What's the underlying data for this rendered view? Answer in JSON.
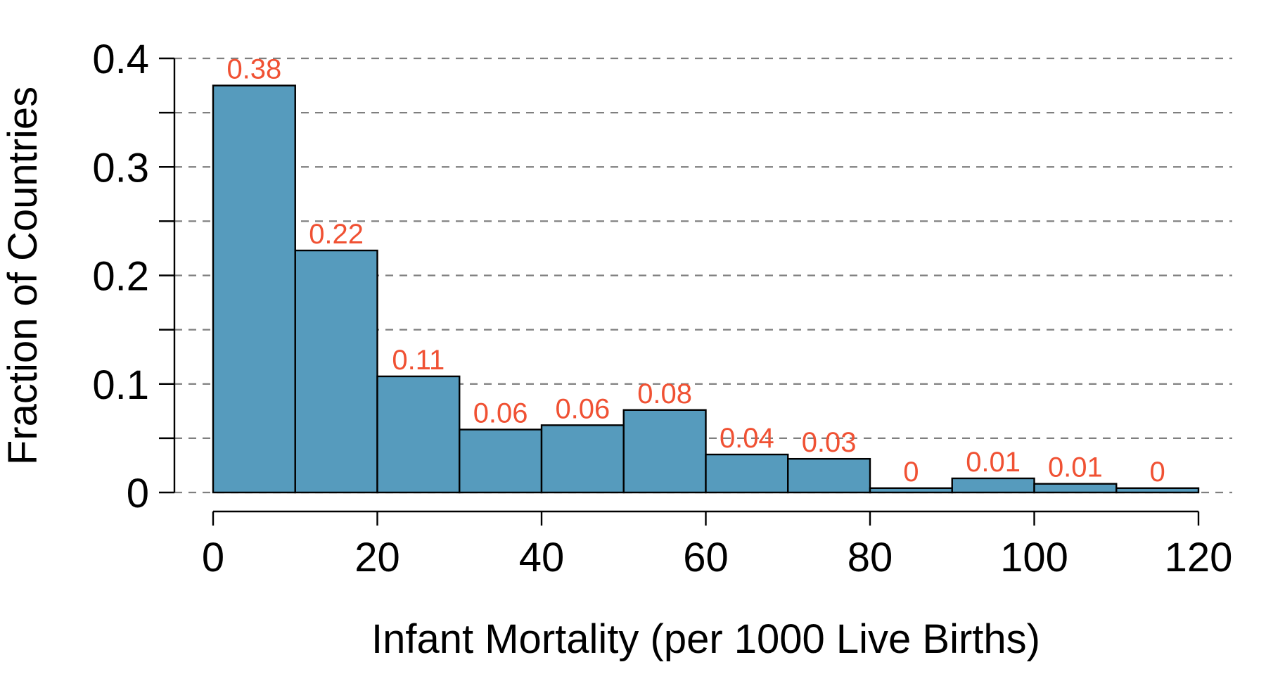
{
  "chart_data": {
    "type": "bar",
    "subtype": "histogram",
    "title": "",
    "xlabel": "Infant Mortality (per 1000 Live Births)",
    "ylabel": "Fraction of Countries",
    "xlim": [
      0,
      120
    ],
    "ylim": [
      0,
      0.4
    ],
    "x_ticks": [
      0,
      20,
      40,
      60,
      80,
      100,
      120
    ],
    "x_tick_labels": [
      "0",
      "20",
      "40",
      "60",
      "80",
      "100",
      "120"
    ],
    "y_ticks": [
      0,
      0.1,
      0.2,
      0.3,
      0.4
    ],
    "y_tick_labels": [
      "0",
      "0.1",
      "0.2",
      "0.3",
      "0.4"
    ],
    "y_minor_ticks": [
      0.05,
      0.15,
      0.25,
      0.35
    ],
    "grid": "horizontal dashed at every 0.05",
    "bin_edges": [
      0,
      10,
      20,
      30,
      40,
      50,
      60,
      70,
      80,
      90,
      100,
      110,
      120
    ],
    "values": [
      0.375,
      0.223,
      0.107,
      0.058,
      0.062,
      0.076,
      0.035,
      0.031,
      0.004,
      0.013,
      0.008,
      0.004
    ],
    "data_labels": [
      "0.38",
      "0.22",
      "0.11",
      "0.06",
      "0.06",
      "0.08",
      "0.04",
      "0.03",
      "0",
      "0.01",
      "0.01",
      "0"
    ],
    "colors": {
      "bar_fill": "#569bbd",
      "bar_stroke": "#000000",
      "label": "#f05133",
      "grid": "#7f7f7f",
      "axis": "#000000"
    }
  }
}
